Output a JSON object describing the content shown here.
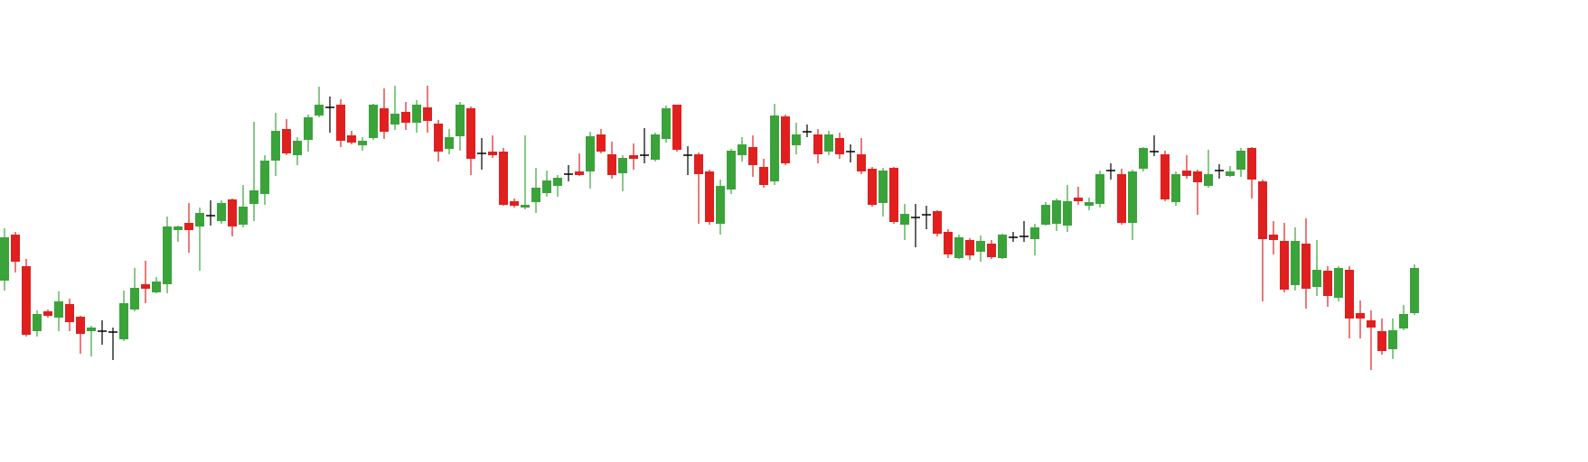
{
  "chart_data": {
    "type": "candlestick",
    "up_color": "#3aa33a",
    "down_color": "#e0201f",
    "unchanged_color": "#000000",
    "open": [
      201,
      252,
      217,
      145,
      167,
      160,
      175,
      161,
      145,
      145,
      144,
      136,
      169,
      197,
      188,
      197,
      257,
      265,
      261,
      273,
      267,
      291,
      263,
      286,
      297,
      334,
      369,
      340,
      357,
      384,
      393,
      396,
      362,
      351,
      359,
      392,
      374,
      388,
      376,
      393,
      375,
      347,
      361,
      392,
      342,
      344,
      344,
      289,
      282,
      288,
      298,
      306,
      319,
      322,
      322,
      363,
      341,
      320,
      340,
      340,
      335,
      358,
      396,
      340,
      341,
      322,
      264,
      302,
      340,
      349,
      327,
      311,
      383,
      351,
      366,
      363,
      344,
      359,
      344,
      341,
      325,
      287,
      326,
      263,
      271,
      274,
      278,
      255,
      226,
      246,
      233,
      242,
      226,
      249,
      250,
      247,
      263,
      264,
      262,
      293,
      284,
      286,
      323,
      319,
      265,
      325,
      344,
      341,
      288,
      323,
      322,
      306,
      323,
      317,
      324,
      348,
      311,
      252,
      245,
      196,
      242,
      194,
      212,
      182,
      213,
      165,
      157,
      145,
      125,
      148,
      165
    ],
    "high": [
      259,
      255,
      225,
      168,
      169,
      189,
      181,
      162,
      151,
      157,
      149,
      190,
      215,
      223,
      205,
      272,
      262,
      287,
      282,
      290,
      290,
      292,
      307,
      377,
      340,
      387,
      380,
      360,
      385,
      416,
      405,
      402,
      367,
      360,
      397,
      414,
      417,
      399,
      401,
      417,
      379,
      369,
      399,
      394,
      359,
      362,
      348,
      292,
      362,
      326,
      323,
      318,
      329,
      342,
      366,
      369,
      355,
      340,
      353,
      370,
      365,
      395,
      396,
      350,
      343,
      324,
      313,
      347,
      360,
      362,
      336,
      397,
      385,
      376,
      374,
      369,
      367,
      365,
      352,
      359,
      327,
      326,
      327,
      286,
      286,
      284,
      279,
      258,
      252,
      248,
      251,
      246,
      253,
      255,
      267,
      264,
      288,
      292,
      307,
      305,
      293,
      323,
      331,
      325,
      324,
      349,
      362,
      345,
      322,
      340,
      324,
      346,
      330,
      328,
      348,
      349,
      313,
      267,
      265,
      260,
      270,
      246,
      217,
      217,
      217,
      179,
      168,
      159,
      159,
      174,
      219
    ],
    "low": [
      190,
      210,
      139,
      139,
      160,
      145,
      145,
      120,
      117,
      130,
      113,
      134,
      167,
      176,
      187,
      187,
      244,
      232,
      212,
      262,
      264,
      250,
      260,
      267,
      285,
      317,
      340,
      329,
      344,
      382,
      365,
      349,
      352,
      345,
      357,
      358,
      368,
      368,
      365,
      365,
      333,
      341,
      345,
      318,
      324,
      337,
      284,
      282,
      280,
      276,
      294,
      294,
      311,
      317,
      303,
      342,
      314,
      300,
      324,
      331,
      333,
      354,
      344,
      318,
      264,
      263,
      252,
      297,
      333,
      316,
      304,
      307,
      329,
      341,
      360,
      331,
      340,
      336,
      332,
      319,
      283,
      272,
      264,
      246,
      238,
      258,
      250,
      226,
      225,
      224,
      222,
      225,
      225,
      244,
      244,
      229,
      262,
      256,
      255,
      285,
      279,
      282,
      313,
      263,
      246,
      322,
      339,
      289,
      284,
      314,
      274,
      304,
      314,
      316,
      316,
      292,
      178,
      230,
      188,
      190,
      170,
      184,
      172,
      178,
      137,
      137,
      102,
      119,
      114,
      146,
      163
    ],
    "close": [
      249,
      222,
      141,
      164,
      162,
      178,
      155,
      142,
      149,
      145,
      144,
      176,
      193,
      192,
      200,
      261,
      261,
      257,
      276,
      273,
      287,
      261,
      283,
      301,
      334,
      367,
      342,
      356,
      382,
      396,
      393,
      356,
      354,
      356,
      396,
      366,
      386,
      376,
      396,
      378,
      344,
      360,
      396,
      336,
      342,
      340,
      285,
      284,
      285,
      304,
      312,
      315,
      319,
      318,
      361,
      344,
      318,
      337,
      336,
      340,
      363,
      392,
      346,
      340,
      319,
      266,
      306,
      345,
      352,
      329,
      307,
      384,
      331,
      363,
      366,
      341,
      363,
      341,
      344,
      322,
      285,
      323,
      266,
      275,
      271,
      274,
      253,
      230,
      249,
      229,
      245,
      227,
      252,
      249,
      250,
      260,
      285,
      290,
      289,
      289,
      288,
      319,
      323,
      265,
      322,
      348,
      344,
      291,
      319,
      317,
      310,
      319,
      323,
      322,
      345,
      313,
      247,
      246,
      191,
      245,
      192,
      213,
      184,
      215,
      159,
      159,
      149,
      123,
      146,
      164,
      215
    ]
  }
}
